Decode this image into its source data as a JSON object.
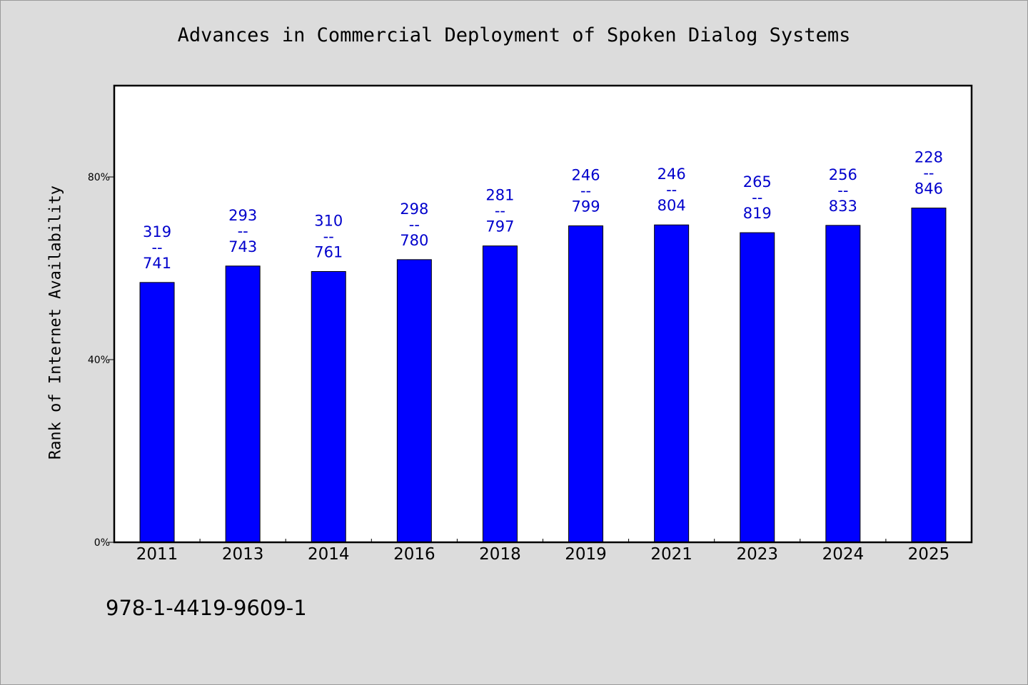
{
  "chart_data": {
    "type": "bar",
    "title": "Advances in Commercial Deployment of Spoken Dialog Systems",
    "ylabel": "Rank of Internet Availability",
    "xlabel": "",
    "categories": [
      "2011",
      "2013",
      "2014",
      "2016",
      "2018",
      "2019",
      "2021",
      "2023",
      "2024",
      "2025"
    ],
    "values": [
      0.569,
      0.605,
      0.593,
      0.619,
      0.649,
      0.693,
      0.695,
      0.678,
      0.694,
      0.732
    ],
    "data_labels": [
      [
        "319",
        "--",
        "741"
      ],
      [
        "293",
        "--",
        "743"
      ],
      [
        "310",
        "--",
        "761"
      ],
      [
        "298",
        "--",
        "780"
      ],
      [
        "281",
        "--",
        "797"
      ],
      [
        "246",
        "--",
        "799"
      ],
      [
        "246",
        "--",
        "804"
      ],
      [
        "265",
        "--",
        "819"
      ],
      [
        "256",
        "--",
        "833"
      ],
      [
        "228",
        "--",
        "846"
      ]
    ],
    "ylim": [
      0,
      1
    ],
    "yticks": [
      0,
      0.4,
      0.8
    ],
    "ytick_labels": [
      "0%",
      "40%",
      "80%"
    ],
    "bar_color": "#0000ff",
    "label_color": "#0000cc",
    "grid": false,
    "legend": "none"
  },
  "footer_text": "978-1-4419-9609-1"
}
